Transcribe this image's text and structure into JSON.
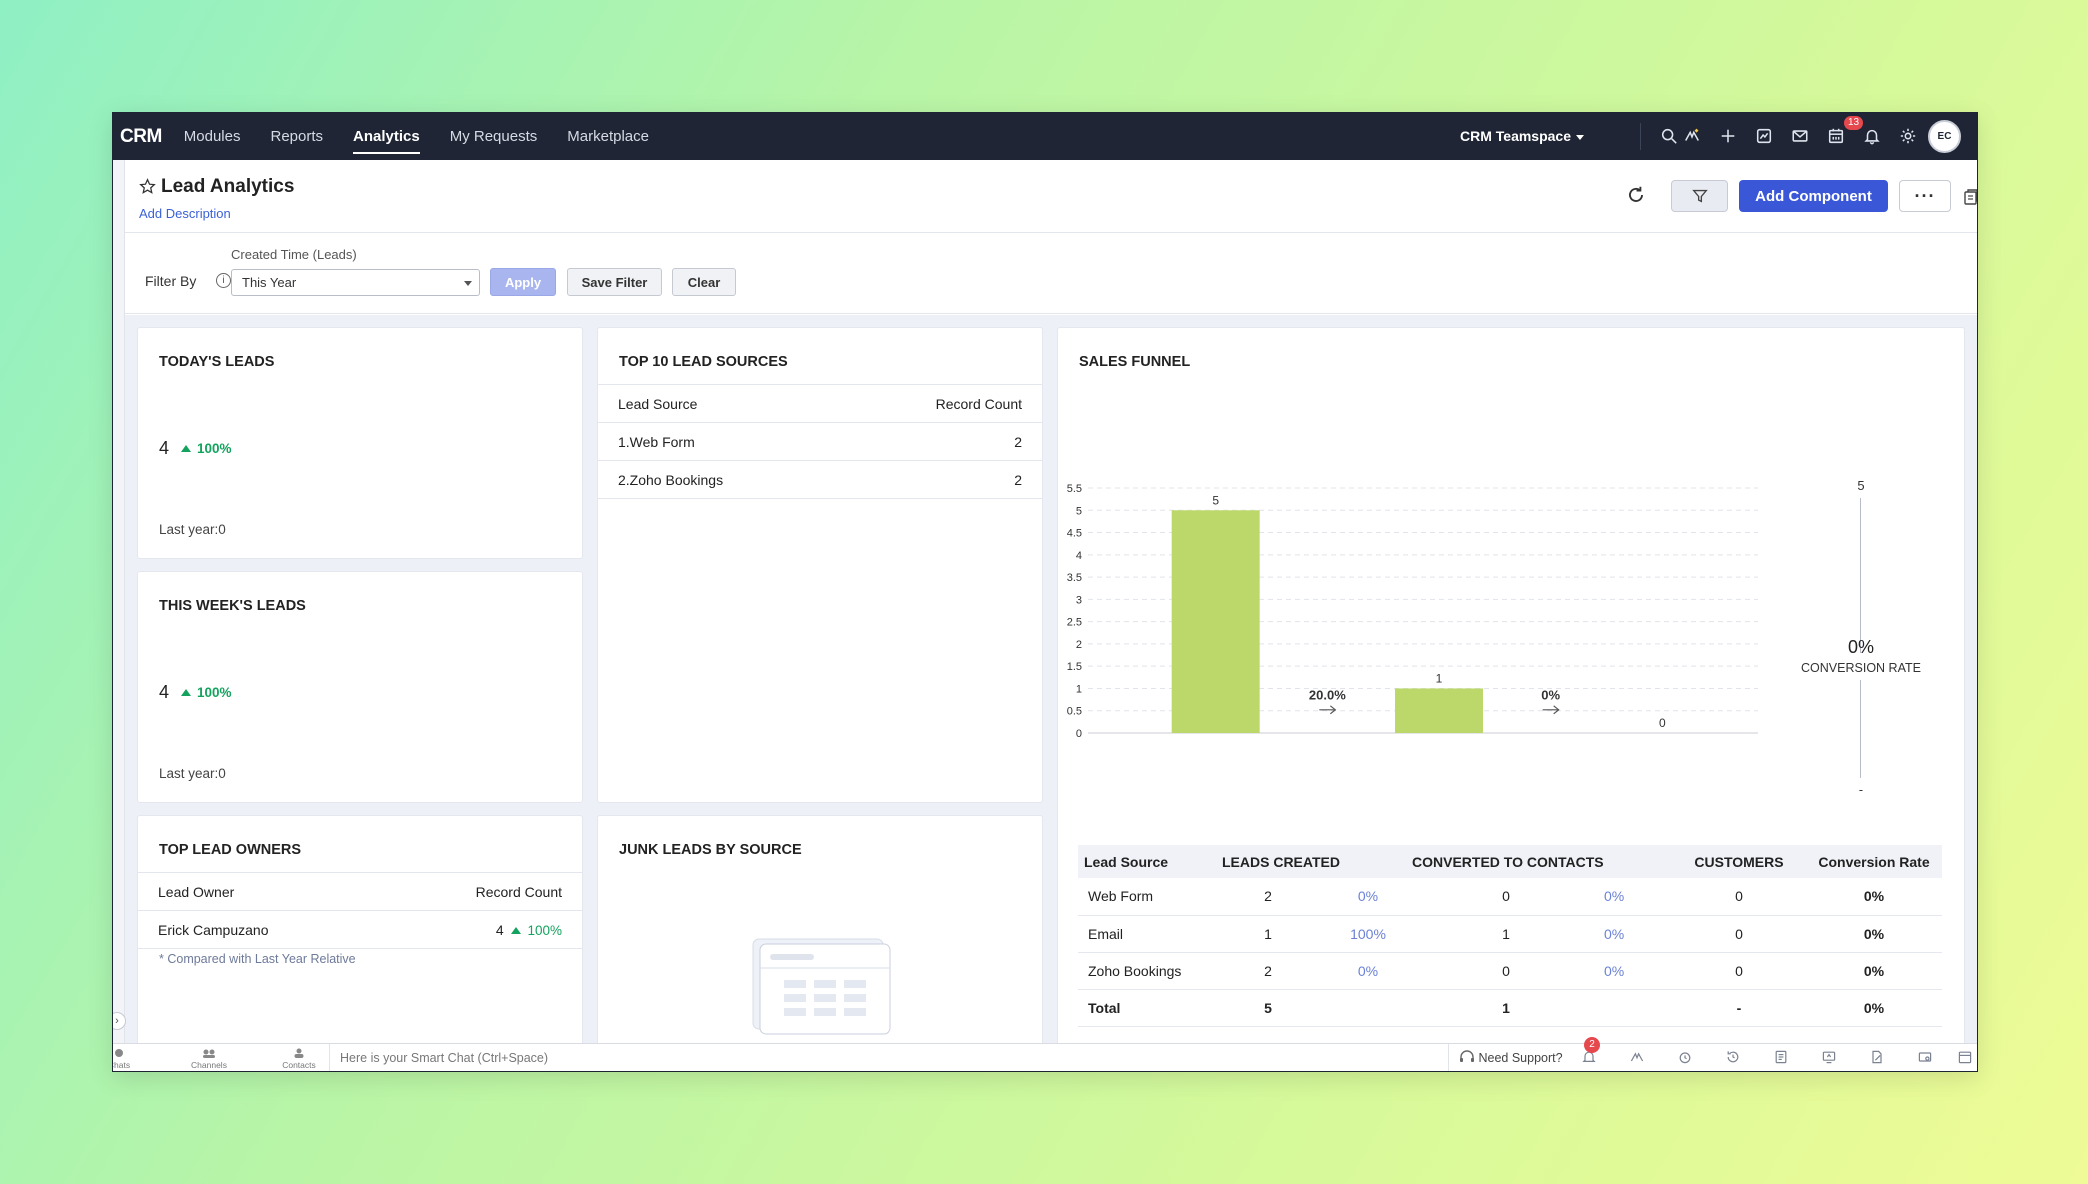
{
  "topbar": {
    "brand": "CRM",
    "nav": [
      "Modules",
      "Reports",
      "Analytics",
      "My Requests",
      "Marketplace"
    ],
    "active_nav": "Analytics",
    "teamspace": "CRM Teamspace",
    "notification_count": "13",
    "avatar_initials": "EC"
  },
  "header": {
    "title": "Lead Analytics",
    "add_description": "Add Description",
    "add_component": "Add Component",
    "more": "···"
  },
  "filter": {
    "filter_by": "Filter By",
    "info": "i",
    "field_label": "Created Time (Leads)",
    "value": "This Year",
    "apply": "Apply",
    "save_filter": "Save Filter",
    "clear": "Clear"
  },
  "todays_leads": {
    "title": "TODAY'S LEADS",
    "value": "4",
    "change": "100%",
    "last_year": "Last year:0"
  },
  "this_weeks_leads": {
    "title": "THIS WEEK'S LEADS",
    "value": "4",
    "change": "100%",
    "last_year": "Last year:0"
  },
  "top_sources": {
    "title": "TOP 10 LEAD SOURCES",
    "col_source": "Lead Source",
    "col_count": "Record Count",
    "rows": [
      {
        "source": "1.Web Form",
        "count": "2"
      },
      {
        "source": "2.Zoho Bookings",
        "count": "2"
      }
    ]
  },
  "top_owners": {
    "title": "TOP LEAD OWNERS",
    "col_owner": "Lead Owner",
    "col_count": "Record Count",
    "rows": [
      {
        "owner": "Erick Campuzano",
        "count": "4",
        "change": "100%"
      }
    ],
    "note": "* Compared with Last Year Relative"
  },
  "junk_leads": {
    "title": "JUNK LEADS BY SOURCE"
  },
  "sales_funnel": {
    "title": "SALES FUNNEL",
    "conversion_top": "5",
    "conversion_pct": "0%",
    "conversion_label": "CONVERSION RATE",
    "conversion_bottom": "-",
    "steps": [
      {
        "rate": "20.0%"
      },
      {
        "rate": "0%"
      }
    ],
    "table": {
      "headers": [
        "Lead Source",
        "LEADS CREATED",
        "CONVERTED TO CONTACTS",
        "CUSTOMERS",
        "Conversion Rate"
      ],
      "rows": [
        {
          "source": "Web Form",
          "created": "2",
          "created_pct": "0%",
          "contacts": "0",
          "contacts_pct": "0%",
          "customers": "0",
          "rate": "0%"
        },
        {
          "source": "Email",
          "created": "1",
          "created_pct": "100%",
          "contacts": "1",
          "contacts_pct": "0%",
          "customers": "0",
          "rate": "0%"
        },
        {
          "source": "Zoho Bookings",
          "created": "2",
          "created_pct": "0%",
          "contacts": "0",
          "contacts_pct": "0%",
          "customers": "0",
          "rate": "0%"
        }
      ],
      "total": {
        "label": "Total",
        "created": "5",
        "contacts": "1",
        "customers": "-",
        "rate": "0%"
      }
    }
  },
  "chart_data": {
    "type": "bar",
    "categories": [
      "LEADS CREATED",
      "CONVERTED TO CONTACTS",
      "CUSTOMERS"
    ],
    "values": [
      5,
      1,
      0
    ],
    "ylim": [
      0,
      5.5
    ],
    "yticks": [
      "0",
      "0.5",
      "1",
      "1.5",
      "2",
      "2.5",
      "3",
      "3.5",
      "4",
      "4.5",
      "5",
      "5.5"
    ],
    "grid": true,
    "bar_color": "#bcd86a"
  },
  "bottombar": {
    "chats": "Chats",
    "channels": "Channels",
    "contacts": "Contacts",
    "smart_chat": "Here is your Smart Chat (Ctrl+Space)",
    "need_support": "Need Support?",
    "badge": "2"
  },
  "colors": {
    "topbar": "#1f2535",
    "accent": "#3a57d8",
    "positive": "#13a35e",
    "bar": "#bcd86a"
  }
}
